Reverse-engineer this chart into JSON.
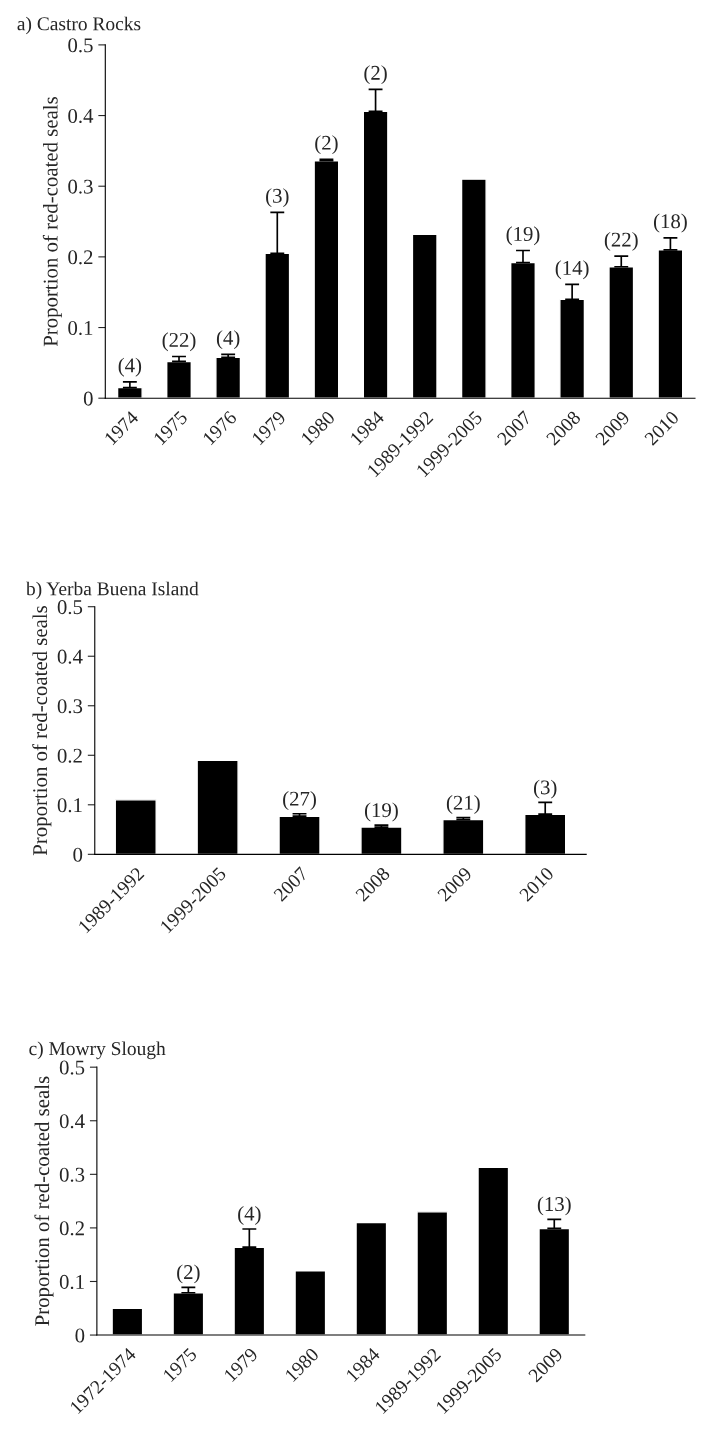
{
  "chart_data": [
    {
      "type": "bar",
      "title": "a) Castro Rocks",
      "ylabel": "Proportion of red-coated seals",
      "categories": [
        "1974",
        "1975",
        "1976",
        "1979",
        "1980",
        "1984",
        "1989-1992",
        "1999-2005",
        "2007",
        "2008",
        "2009",
        "2010"
      ],
      "values": [
        0.015,
        0.052,
        0.058,
        0.205,
        0.336,
        0.406,
        0.232,
        0.31,
        0.192,
        0.14,
        0.186,
        0.21
      ],
      "errors": [
        [
          0.015,
          0.023
        ],
        [
          0.052,
          0.059
        ],
        [
          0.058,
          0.062
        ],
        [
          0.205,
          0.263
        ],
        [
          0.336,
          0.338
        ],
        [
          0.406,
          0.437
        ],
        null,
        null,
        [
          0.192,
          0.209
        ],
        [
          0.14,
          0.161
        ],
        [
          0.186,
          0.201
        ],
        [
          0.21,
          0.227
        ]
      ],
      "annotations": [
        {
          "text": "(4)",
          "x": "1974",
          "y": 0.023
        },
        {
          "text": "(22)",
          "x": "1975",
          "y": 0.059
        },
        {
          "text": "(4)",
          "x": "1976",
          "y": 0.062
        },
        {
          "text": "(3)",
          "x": "1979",
          "y": 0.263
        },
        {
          "text": "(2)",
          "x": "1980",
          "y": 0.338
        },
        {
          "text": "(2)",
          "x": "1984",
          "y": 0.437
        },
        {
          "text": "(19)",
          "x": "2007",
          "y": 0.209
        },
        {
          "text": "(14)",
          "x": "2008",
          "y": 0.161
        },
        {
          "text": "(22)",
          "x": "2009",
          "y": 0.201
        },
        {
          "text": "(18)",
          "x": "2010",
          "y": 0.227
        }
      ],
      "color": "#000000",
      "ylim": [
        0,
        0.5
      ],
      "yticks": [
        0,
        0.1,
        0.2,
        0.3,
        0.4,
        0.5
      ]
    },
    {
      "type": "bar",
      "title": "b) Yerba Buena Island",
      "ylabel": "Proportion of red-coated seals",
      "categories": [
        "1989-1992",
        "1999-2005",
        "2007",
        "2008",
        "2009",
        "2010"
      ],
      "values": [
        0.11,
        0.19,
        0.077,
        0.055,
        0.07,
        0.081
      ],
      "errors": [
        null,
        null,
        [
          0.077,
          0.082
        ],
        [
          0.055,
          0.059
        ],
        [
          0.07,
          0.074
        ],
        [
          0.081,
          0.105
        ]
      ],
      "annotations": [
        {
          "text": "(27)",
          "x": "2007",
          "y": 0.082
        },
        {
          "text": "(19)",
          "x": "2008",
          "y": 0.059
        },
        {
          "text": "(21)",
          "x": "2009",
          "y": 0.074
        },
        {
          "text": "(3)",
          "x": "2010",
          "y": 0.105
        }
      ],
      "color": "#000000",
      "ylim": [
        0,
        0.5
      ],
      "yticks": [
        0,
        0.1,
        0.2,
        0.3,
        0.4,
        0.5
      ]
    },
    {
      "type": "bar",
      "title": "c) Mowry Slough",
      "ylabel": "Proportion of red-coated seals",
      "categories": [
        "1972-1974",
        "1975",
        "1979",
        "1980",
        "1984",
        "1989-1992",
        "1999-2005",
        "2009"
      ],
      "values": [
        0.05,
        0.079,
        0.164,
        0.12,
        0.21,
        0.23,
        0.313,
        0.199
      ],
      "errors": [
        null,
        [
          0.079,
          0.089
        ],
        [
          0.164,
          0.198
        ],
        null,
        null,
        null,
        null,
        [
          0.199,
          0.216
        ]
      ],
      "annotations": [
        {
          "text": "(2)",
          "x": "1975",
          "y": 0.089
        },
        {
          "text": "(4)",
          "x": "1979",
          "y": 0.198
        },
        {
          "text": "(13)",
          "x": "2009",
          "y": 0.216
        }
      ],
      "color": "#000000",
      "ylim": [
        0,
        0.5
      ],
      "yticks": [
        0,
        0.1,
        0.2,
        0.3,
        0.4,
        0.5
      ]
    }
  ]
}
